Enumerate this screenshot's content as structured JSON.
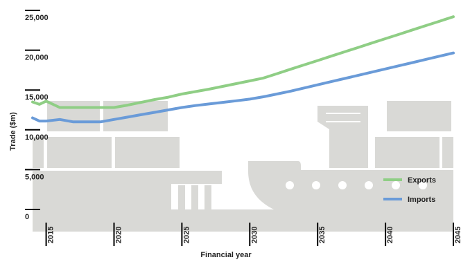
{
  "chart_data": {
    "type": "line",
    "title": "",
    "xlabel": "Financial year",
    "ylabel": "Trade ($m)",
    "xlim": [
      2014,
      2045
    ],
    "ylim": [
      0,
      25000
    ],
    "x_ticks": [
      "2015",
      "2020",
      "2025",
      "2030",
      "2035",
      "2040",
      "2045"
    ],
    "y_ticks": [
      "0",
      "5,000",
      "10,000",
      "15,000",
      "20,000",
      "25,000"
    ],
    "grid": false,
    "legend_position": "bottom-right",
    "series": [
      {
        "name": "Exports",
        "color": "#8fce85",
        "x": [
          2014,
          2014.5,
          2015,
          2016,
          2017,
          2018,
          2019,
          2020,
          2021,
          2022,
          2023,
          2024,
          2025,
          2026,
          2027,
          2028,
          2029,
          2030,
          2031,
          2032,
          2033,
          2034,
          2035,
          2036,
          2037,
          2038,
          2039,
          2040,
          2041,
          2042,
          2043,
          2044,
          2045
        ],
        "values": [
          13500,
          13200,
          13600,
          12800,
          12800,
          12800,
          12800,
          12800,
          13100,
          13450,
          13800,
          14100,
          14500,
          14800,
          15100,
          15450,
          15800,
          16150,
          16500,
          17050,
          17600,
          18150,
          18700,
          19250,
          19800,
          20350,
          20900,
          21450,
          22000,
          22550,
          23100,
          23650,
          24200
        ]
      },
      {
        "name": "Imports",
        "color": "#6a9bd8",
        "x": [
          2014,
          2014.5,
          2015,
          2016,
          2017,
          2018,
          2019,
          2020,
          2021,
          2022,
          2023,
          2024,
          2025,
          2026,
          2027,
          2028,
          2029,
          2030,
          2031,
          2032,
          2033,
          2034,
          2035,
          2036,
          2037,
          2038,
          2039,
          2040,
          2041,
          2042,
          2043,
          2044,
          2045
        ],
        "values": [
          11500,
          11100,
          11100,
          11300,
          11000,
          11000,
          11000,
          11300,
          11600,
          11900,
          12200,
          12500,
          12800,
          13050,
          13250,
          13450,
          13650,
          13850,
          14150,
          14500,
          14850,
          15250,
          15650,
          16050,
          16450,
          16850,
          17250,
          17650,
          18050,
          18450,
          18850,
          19250,
          19650
        ]
      }
    ]
  },
  "colors": {
    "background_art": "#d9d9d6",
    "axis": "#000000",
    "text": "#222222"
  }
}
